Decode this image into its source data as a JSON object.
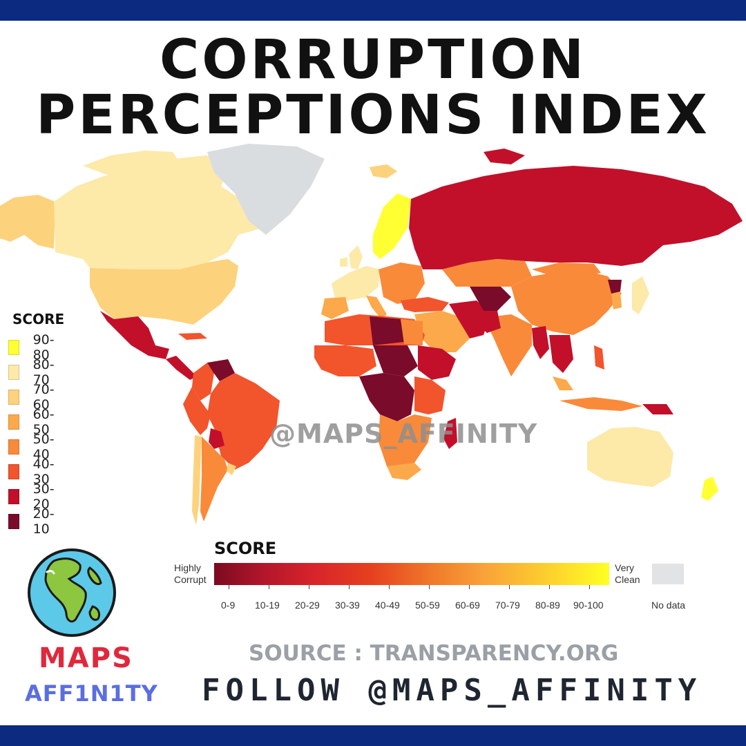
{
  "header": {
    "title_line1": "CORRUPTION",
    "title_line2": "PERCEPTIONS INDEX"
  },
  "map": {
    "watermark": "@MAPS_AFFINITY",
    "no_data_color": "#d9dde0"
  },
  "legend": {
    "title": "SCORE",
    "items": [
      {
        "label": "90-80",
        "color": "#ffff33"
      },
      {
        "label": "80-70",
        "color": "#fde9a8"
      },
      {
        "label": "70-60",
        "color": "#fdd27c"
      },
      {
        "label": "60-50",
        "color": "#fca94b"
      },
      {
        "label": "50-40",
        "color": "#f98a3a"
      },
      {
        "label": "40-30",
        "color": "#f2542c"
      },
      {
        "label": "30-20",
        "color": "#c2102a"
      },
      {
        "label": "20-10",
        "color": "#7b0b2a"
      }
    ]
  },
  "scale": {
    "title": "SCORE",
    "left_line1": "Highly",
    "left_line2": "Corrupt",
    "right_line1": "Very",
    "right_line2": "Clean",
    "ticks": [
      "0-9",
      "10-19",
      "20-29",
      "30-39",
      "40-49",
      "50-59",
      "60-69",
      "70-79",
      "80-89",
      "90-100"
    ],
    "no_data_label": "No data"
  },
  "brand": {
    "line1": "MAPS",
    "line2": "AFF1N1TY"
  },
  "footer": {
    "source": "SOURCE : TRANSPARENCY.ORG",
    "follow": "FOLLOW @MAPS_AFFINITY"
  }
}
